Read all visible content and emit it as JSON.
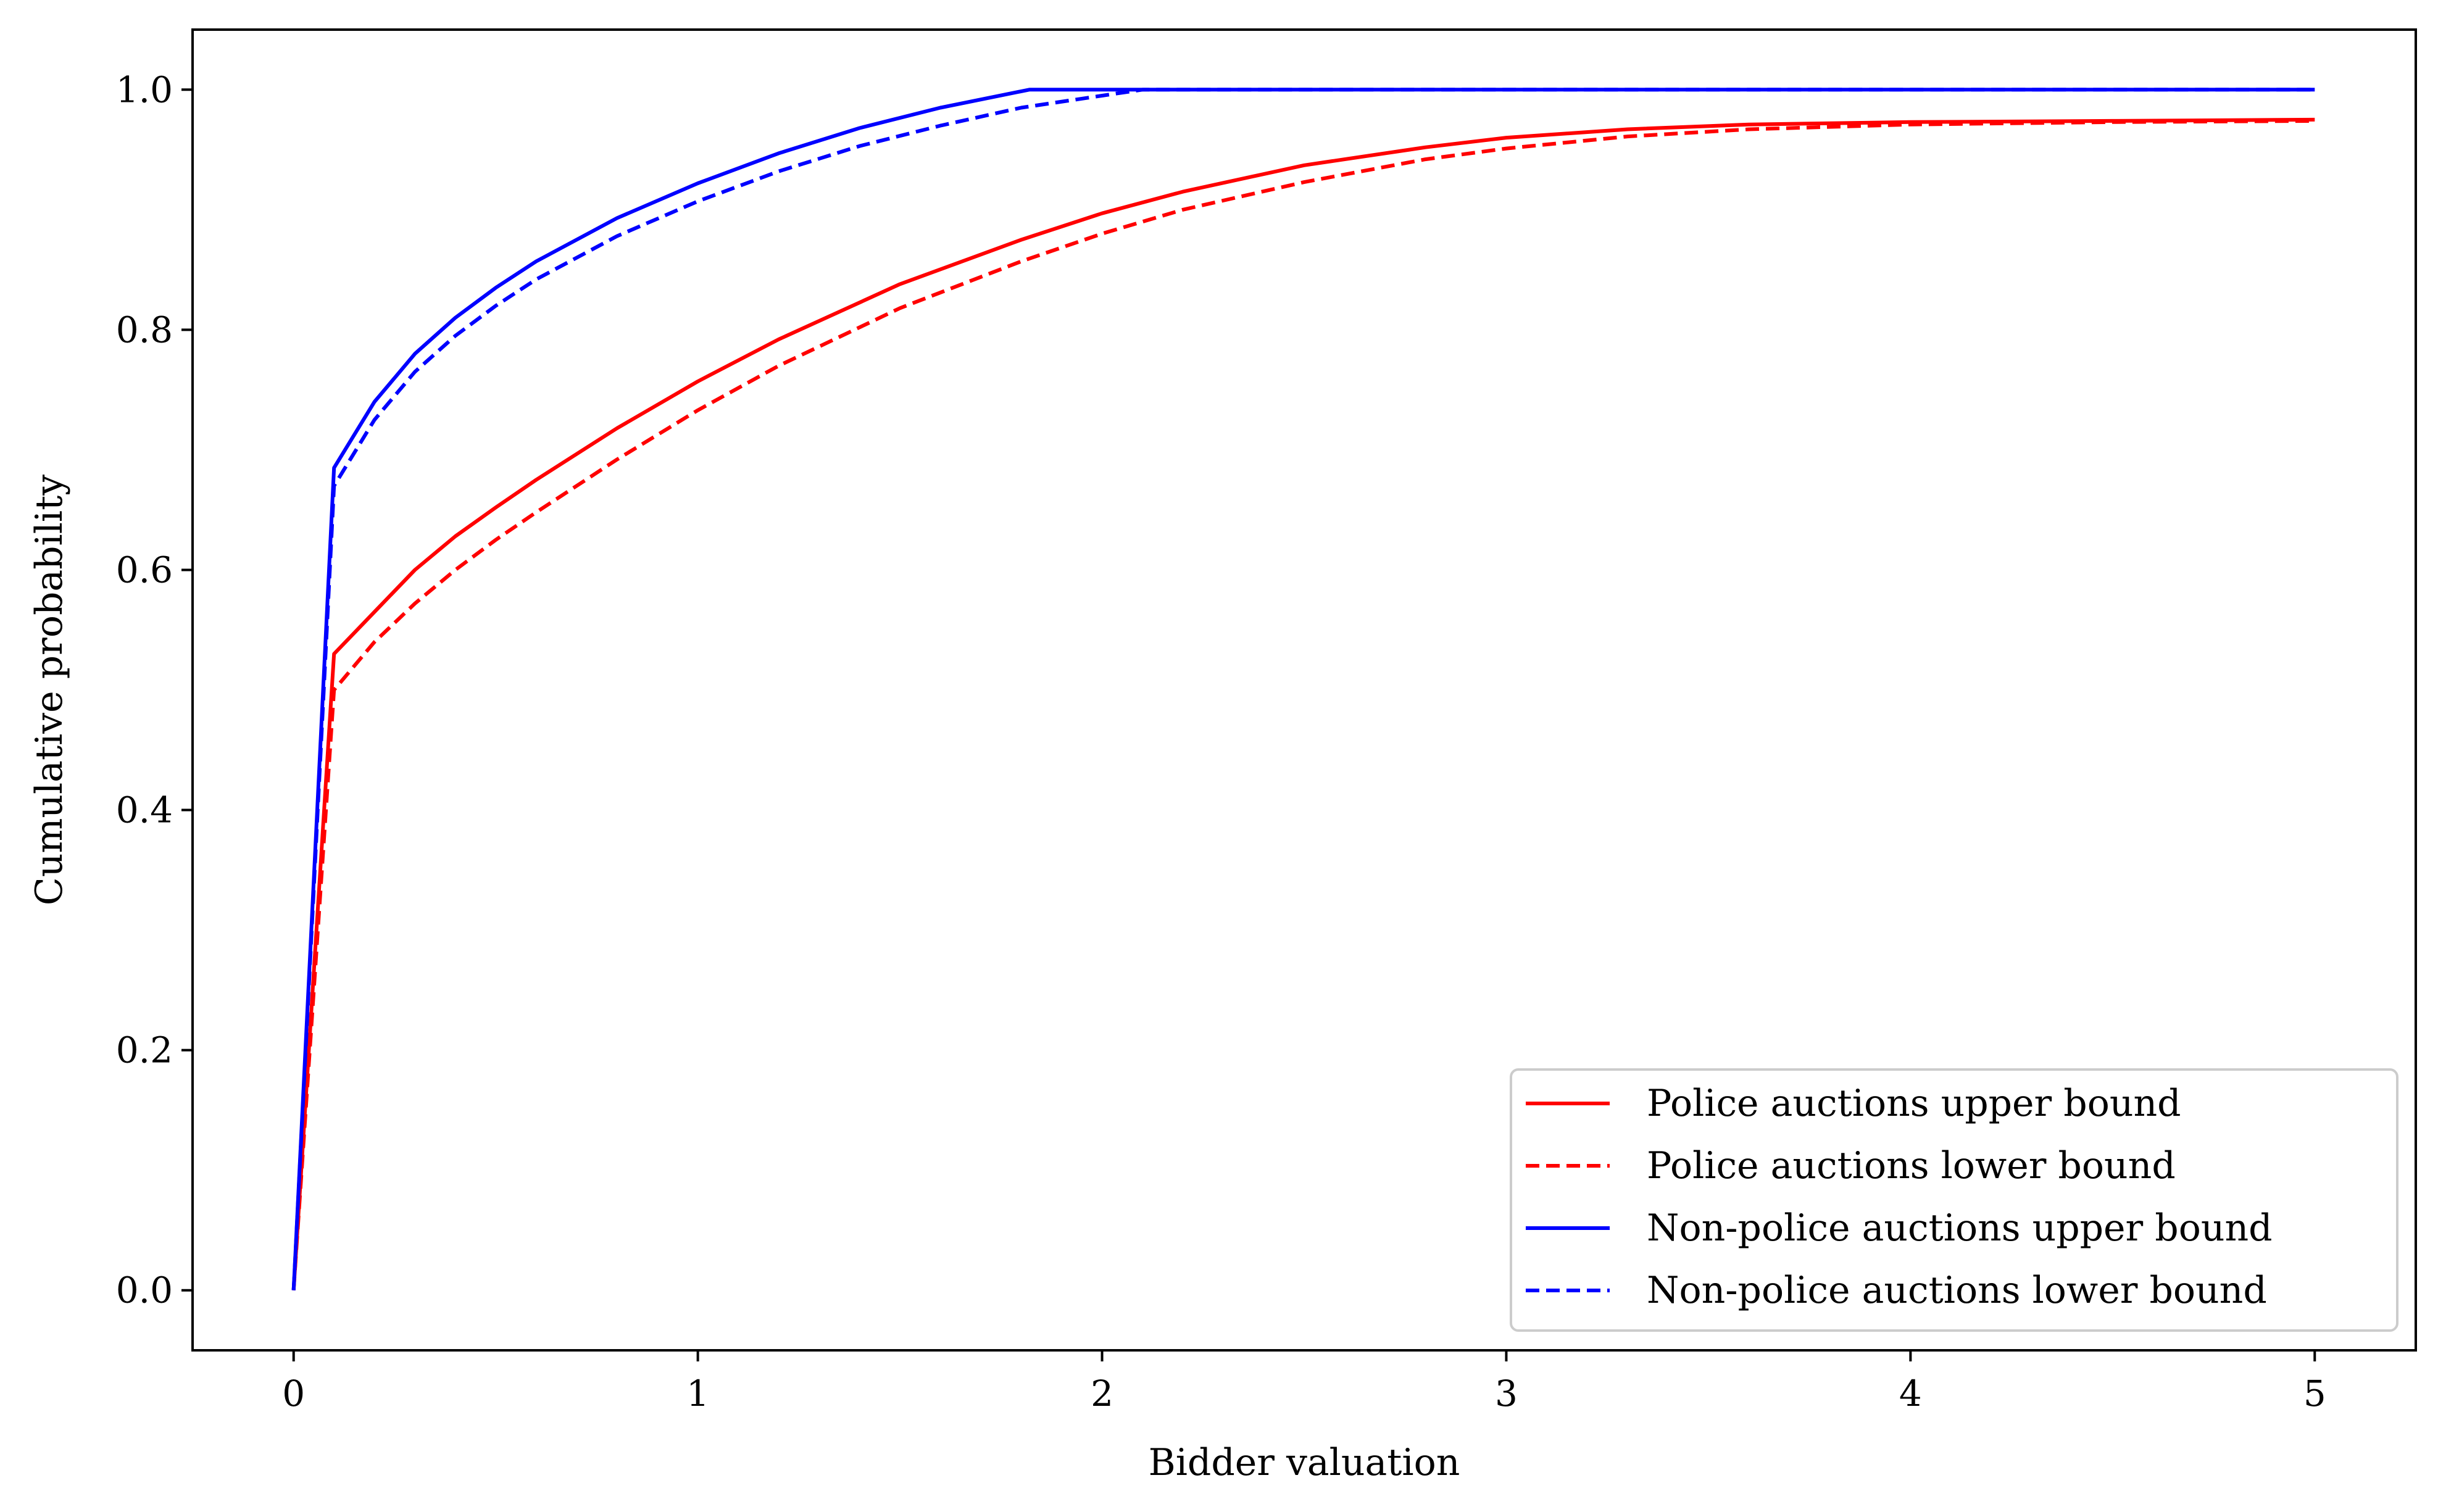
{
  "chart_data": {
    "type": "line",
    "title": "",
    "xlabel": "Bidder valuation",
    "ylabel": "Cumulative probability",
    "xlim": [
      -0.25,
      5.25
    ],
    "ylim": [
      -0.05,
      1.05
    ],
    "xticks": [
      0,
      1,
      2,
      3,
      4,
      5
    ],
    "xtick_labels": [
      "0",
      "1",
      "2",
      "3",
      "4",
      "5"
    ],
    "yticks": [
      0.0,
      0.2,
      0.4,
      0.6,
      0.8,
      1.0
    ],
    "ytick_labels": [
      "0.0",
      "0.2",
      "0.4",
      "0.6",
      "0.8",
      "1.0"
    ],
    "grid": false,
    "legend_position": "bottom-right",
    "series": [
      {
        "name": "Police auctions upper bound",
        "color": "#ff0000",
        "dash": "solid",
        "x": [
          0,
          0.1,
          0.2,
          0.3,
          0.4,
          0.5,
          0.6,
          0.8,
          1.0,
          1.2,
          1.5,
          1.8,
          2.0,
          2.2,
          2.5,
          2.8,
          3.0,
          3.3,
          3.6,
          4.0,
          4.5,
          5.0
        ],
        "y": [
          0.0,
          0.53,
          0.565,
          0.6,
          0.628,
          0.652,
          0.675,
          0.718,
          0.757,
          0.792,
          0.838,
          0.875,
          0.897,
          0.915,
          0.937,
          0.952,
          0.96,
          0.967,
          0.971,
          0.973,
          0.974,
          0.975
        ]
      },
      {
        "name": "Police auctions lower bound",
        "color": "#ff0000",
        "dash": "dashed",
        "x": [
          0,
          0.1,
          0.2,
          0.3,
          0.4,
          0.5,
          0.6,
          0.8,
          1.0,
          1.2,
          1.5,
          1.8,
          2.0,
          2.2,
          2.5,
          2.8,
          3.0,
          3.3,
          3.6,
          4.0,
          4.5,
          5.0
        ],
        "y": [
          0.0,
          0.5,
          0.54,
          0.572,
          0.6,
          0.625,
          0.648,
          0.692,
          0.733,
          0.77,
          0.818,
          0.857,
          0.88,
          0.9,
          0.923,
          0.942,
          0.951,
          0.961,
          0.967,
          0.971,
          0.973,
          0.974
        ]
      },
      {
        "name": "Non-police auctions upper bound",
        "color": "#0000ff",
        "dash": "solid",
        "x": [
          0,
          0.1,
          0.2,
          0.3,
          0.4,
          0.5,
          0.6,
          0.8,
          1.0,
          1.2,
          1.4,
          1.6,
          1.82,
          2.0,
          2.5,
          3.0,
          4.0,
          5.0
        ],
        "y": [
          0.0,
          0.685,
          0.74,
          0.78,
          0.81,
          0.835,
          0.857,
          0.893,
          0.922,
          0.947,
          0.968,
          0.985,
          1.0,
          1.0,
          1.0,
          1.0,
          1.0,
          1.0
        ]
      },
      {
        "name": "Non-police auctions lower bound",
        "color": "#0000ff",
        "dash": "dashed",
        "x": [
          0,
          0.1,
          0.2,
          0.3,
          0.4,
          0.5,
          0.6,
          0.8,
          1.0,
          1.2,
          1.4,
          1.6,
          1.8,
          2.0,
          2.1,
          2.5,
          3.0,
          4.0,
          5.0
        ],
        "y": [
          0.0,
          0.67,
          0.725,
          0.765,
          0.795,
          0.82,
          0.842,
          0.878,
          0.907,
          0.932,
          0.953,
          0.97,
          0.985,
          0.995,
          1.0,
          1.0,
          1.0,
          1.0,
          1.0
        ]
      }
    ]
  }
}
